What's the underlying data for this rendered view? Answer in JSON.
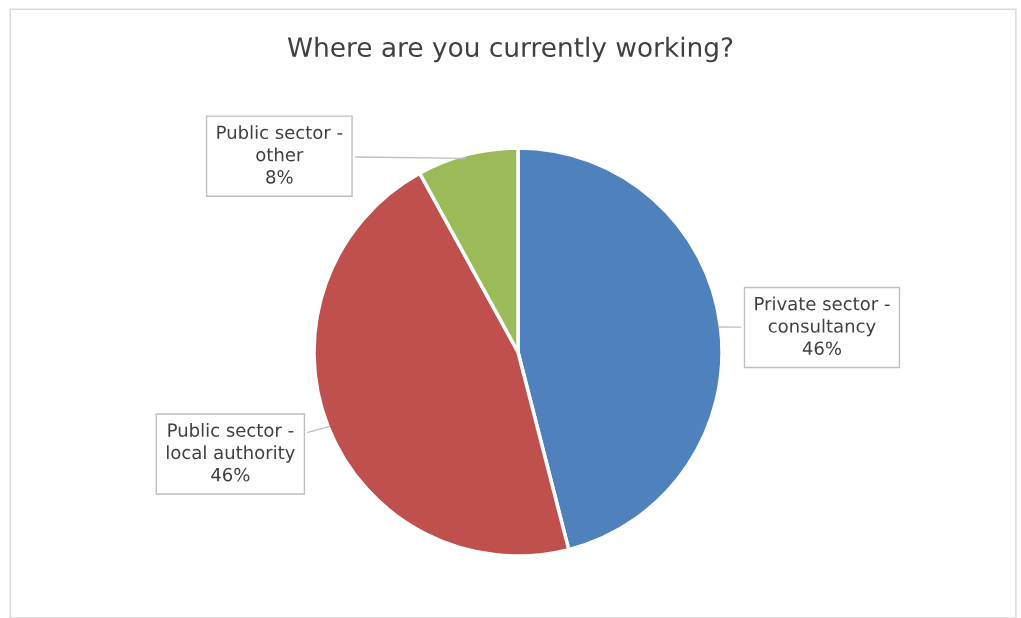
{
  "chart_data": {
    "type": "pie",
    "title": "Where are you currently working?",
    "categories": [
      "Private sector - consultancy",
      "Public sector - local authority",
      "Public sector - other"
    ],
    "values": [
      46,
      46,
      8
    ],
    "colors": [
      "#4f81bd",
      "#c0504d",
      "#9bbb59"
    ],
    "value_labels": [
      "46%",
      "46%",
      "8%"
    ],
    "legend": false
  }
}
